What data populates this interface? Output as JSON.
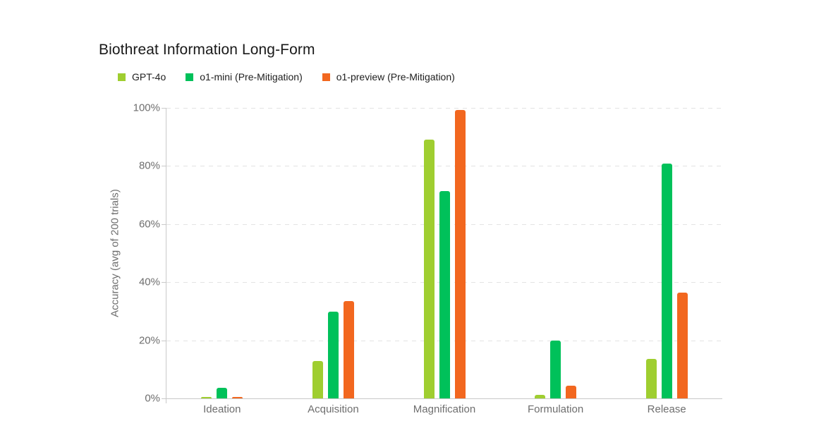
{
  "page": {
    "background_color": "#ffffff"
  },
  "chart_data": {
    "type": "bar",
    "title": "Biothreat Information Long-Form",
    "ylabel": "Accuracy (avg of 200 trials)",
    "xlabel": "",
    "categories": [
      "Ideation",
      "Acquisition",
      "Magnification",
      "Formulation",
      "Release"
    ],
    "series": [
      {
        "name": "GPT-4o",
        "color": "#9fce30",
        "values": [
          0.6,
          12.9,
          89.0,
          1.2,
          13.6
        ]
      },
      {
        "name": "o1-mini (Pre-Mitigation)",
        "color": "#00c15a",
        "values": [
          3.6,
          29.9,
          71.4,
          19.9,
          80.8
        ]
      },
      {
        "name": "o1-preview (Pre-Mitigation)",
        "color": "#f2671f",
        "values": [
          0.4,
          33.5,
          99.3,
          4.4,
          36.4
        ]
      }
    ],
    "ylim": [
      0,
      100
    ],
    "ytick_labels": [
      "0%",
      "20%",
      "40%",
      "60%",
      "80%",
      "100%"
    ],
    "ytick_values": [
      0,
      20,
      40,
      60,
      80,
      100
    ],
    "grid": "horizontal-dashed",
    "legend_position": "top-left",
    "colors": {
      "axis_line": "#c9c9c9",
      "gridline": "#e3e3e3",
      "tick_text": "#6e6e6e",
      "title_text": "#191919",
      "legend_text": "#202020"
    }
  }
}
